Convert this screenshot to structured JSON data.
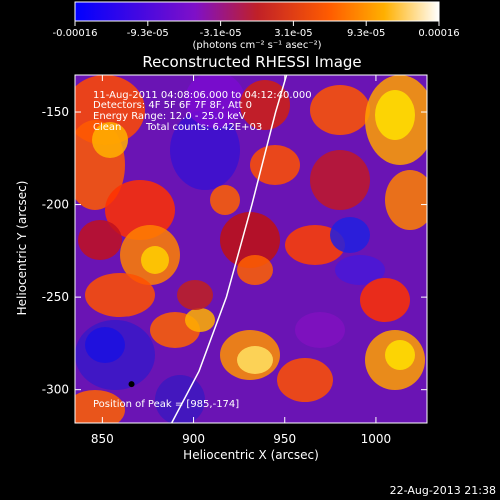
{
  "chart_data": {
    "type": "heatmap",
    "title": "Reconstructed RHESSI Image",
    "xlabel": "Heliocentric X (arcsec)",
    "ylabel": "Heliocentric Y (arcsec)",
    "x_ticks": [
      850,
      900,
      950,
      1000
    ],
    "y_ticks": [
      -150,
      -200,
      -250,
      -300
    ],
    "xlim": [
      835,
      1028
    ],
    "ylim": [
      -318,
      -130
    ],
    "colorbar": {
      "min": -0.00016,
      "max": 0.00016,
      "tick_labels": [
        "-0.00016",
        "-9.3e-05",
        "-3.1e-05",
        "3.1e-05",
        "9.3e-05",
        "0.00016"
      ],
      "unit_label": "(photons cm⁻² s⁻¹ asec⁻²)"
    },
    "annotations": {
      "time_range": "11-Aug-2011 04:08:06.000 to 04:12:40.000",
      "detectors": "Detectors: 4F 5F 6F 7F 8F, Att 0",
      "energy_range": "Energy Range: 12.0 - 25.0 keV",
      "clean_method": "Clean",
      "total_counts": "Total counts: 6.42E+03",
      "peak": "Position of Peak = [985,-174]"
    },
    "peak_position": [
      985,
      -174
    ],
    "marker_position": [
      866,
      -297
    ],
    "limb_curve": [
      [
        888,
        -318
      ],
      [
        903,
        -290
      ],
      [
        918,
        -250
      ],
      [
        932,
        -200
      ],
      [
        945,
        -150
      ],
      [
        951,
        -130
      ]
    ]
  },
  "footer": {
    "timestamp": "22-Aug-2013 21:38"
  }
}
